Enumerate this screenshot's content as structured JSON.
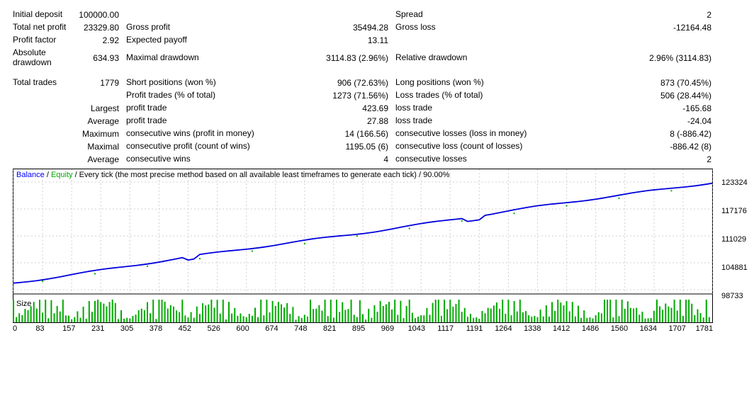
{
  "stats": {
    "row1": {
      "l1": "Initial deposit",
      "v1": "100000.00",
      "l2": "",
      "v2": "",
      "l3": "Spread",
      "v3": "2"
    },
    "row2": {
      "l1": "Total net profit",
      "v1": "23329.80",
      "l2": "Gross profit",
      "v2": "35494.28",
      "l3": "Gross loss",
      "v3": "-12164.48"
    },
    "row3": {
      "l1": "Profit factor",
      "v1": "2.92",
      "l2": "Expected payoff",
      "v2": "13.11",
      "l3": "",
      "v3": ""
    },
    "row4": {
      "l1": "Absolute drawdown",
      "v1": "634.93",
      "l2": "Maximal drawdown",
      "v2": "3114.83 (2.96%)",
      "l3": "Relative drawdown",
      "v3": "2.96% (3114.83)"
    },
    "row5": {
      "l1": "Total trades",
      "v1": "1779",
      "l2": "Short positions (won %)",
      "v2": "906 (72.63%)",
      "l3": "Long positions (won %)",
      "v3": "873 (70.45%)"
    },
    "row6": {
      "l1": "",
      "v1": "",
      "l2": "Profit trades (% of total)",
      "v2": "1273 (71.56%)",
      "l3": "Loss trades (% of total)",
      "v3": "506 (28.44%)"
    },
    "row7": {
      "l1": "",
      "v1": "Largest",
      "l2": "profit trade",
      "v2": "423.69",
      "l3": "loss trade",
      "v3": "-165.68"
    },
    "row8": {
      "l1": "",
      "v1": "Average",
      "l2": "profit trade",
      "v2": "27.88",
      "l3": "loss trade",
      "v3": "-24.04"
    },
    "row9": {
      "l1": "",
      "v1": "Maximum",
      "l2": "consecutive wins (profit in money)",
      "v2": "14 (166.56)",
      "l3": "consecutive losses (loss in money)",
      "v3": "8 (-886.42)"
    },
    "row10": {
      "l1": "",
      "v1": "Maximal",
      "l2": "consecutive profit (count of wins)",
      "v2": "1195.05 (6)",
      "l3": "consecutive loss (count of losses)",
      "v3": "-886.42 (8)"
    },
    "row11": {
      "l1": "",
      "v1": "Average",
      "l2": "consecutive wins",
      "v2": "4",
      "l3": "consecutive losses",
      "v3": "2"
    }
  },
  "chart": {
    "title_prefix": "Balance",
    "title_sep1": " / ",
    "title_mid": "Equity",
    "title_rest": " / Every tick (the most precise method based on all available least timeframes to generate each tick) / 90.00%",
    "size_label": "Size",
    "balance_color": "#0000dd",
    "equity_color": "#00aa00",
    "grid_color": "#d0d0d0",
    "ylabels": [
      "123324",
      "117176",
      "111029",
      "104881",
      "98733"
    ],
    "xticks": [
      "0",
      "83",
      "157",
      "231",
      "305",
      "378",
      "452",
      "526",
      "600",
      "674",
      "748",
      "821",
      "895",
      "969",
      "1043",
      "1117",
      "1191",
      "1264",
      "1338",
      "1412",
      "1486",
      "1560",
      "1634",
      "1707",
      "1781"
    ]
  }
}
